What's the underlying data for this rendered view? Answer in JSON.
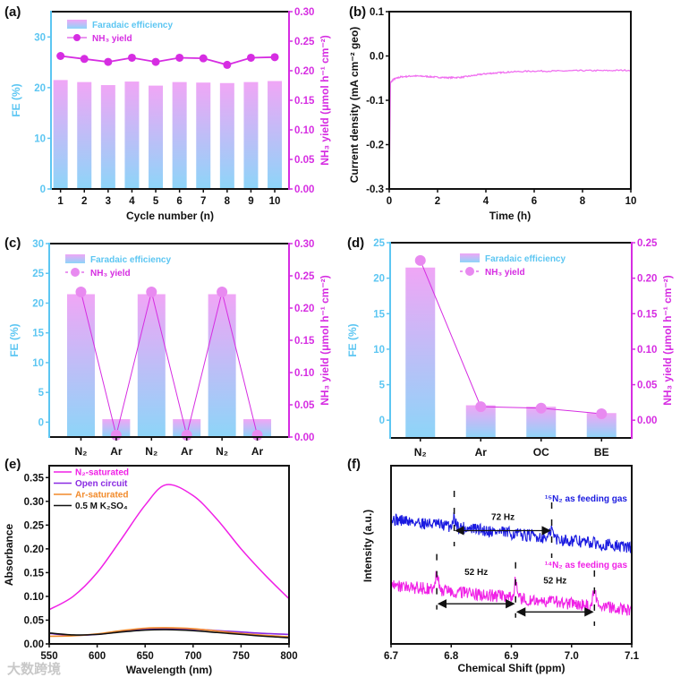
{
  "figure": {
    "panel_labels": [
      "(a)",
      "(b)",
      "(c)",
      "(d)",
      "(e)",
      "(f)"
    ],
    "watermark": "大数跨境"
  },
  "colors": {
    "fe_axis": "#5cc6f2",
    "nh3_axis": "#d62de2",
    "bar_top": "#f0a6f6",
    "bar_bottom": "#8dd5f8",
    "nh3_marker": "#d62de2",
    "nh3_marker_light": "#e88af0",
    "n2_saturated": "#f020e6",
    "open_circuit": "#8a2be2",
    "ar_saturated": "#f28a2a",
    "k2so4": "#111111",
    "n15": "#1a1ae0",
    "n14": "#f020e6",
    "current": "#f070f0"
  },
  "chart_data": [
    {
      "panel": "a",
      "type": "bar",
      "categories": [
        "1",
        "2",
        "3",
        "4",
        "5",
        "6",
        "7",
        "8",
        "9",
        "10"
      ],
      "xlabel": "Cycle number (n)",
      "ylabel": "FE (%)",
      "ylabel_right": "NH₃ yield (μmol h⁻¹ cm⁻²)",
      "ylim": [
        0,
        35
      ],
      "yticks": [
        0,
        10,
        20,
        30
      ],
      "yticklabels": [
        "0",
        "10",
        "20",
        "30"
      ],
      "ylim_right": [
        0,
        0.3
      ],
      "y2ticks": [
        0,
        0.05,
        0.1,
        0.15,
        0.2,
        0.25,
        0.3
      ],
      "y2ticklabels": [
        "0.00",
        "0.05",
        "0.10",
        "0.15",
        "0.20",
        "0.25",
        "0.30"
      ],
      "legend": [
        "Faradaic efficiency",
        "NH₃ yield"
      ],
      "legend_position": "top-left",
      "series": [
        {
          "name": "Faradaic efficiency",
          "axis": "left",
          "kind": "bar",
          "values": [
            21.5,
            21.1,
            20.5,
            21.2,
            20.4,
            21.1,
            21.0,
            20.9,
            21.1,
            21.3
          ]
        },
        {
          "name": "NH₃ yield",
          "axis": "right",
          "kind": "line",
          "values": [
            0.225,
            0.22,
            0.215,
            0.222,
            0.215,
            0.222,
            0.221,
            0.21,
            0.222,
            0.223
          ]
        }
      ]
    },
    {
      "panel": "b",
      "type": "line",
      "xlabel": "Time (h)",
      "ylabel": "Current density (mA cm⁻² geo)",
      "xlim": [
        0,
        10
      ],
      "xticks": [
        0,
        2,
        4,
        6,
        8,
        10
      ],
      "xticklabels": [
        "0",
        "2",
        "4",
        "6",
        "8",
        "10"
      ],
      "ylim": [
        -0.3,
        0.1
      ],
      "yticks": [
        -0.3,
        -0.2,
        -0.1,
        0.0,
        0.1
      ],
      "yticklabels": [
        "-0.3",
        "-0.2",
        "-0.1",
        "0.0",
        "0.1"
      ],
      "series": [
        {
          "name": "current density",
          "x": [
            0,
            0.05,
            0.2,
            0.5,
            1,
            1.5,
            2,
            2.5,
            3,
            3.5,
            4,
            4.5,
            5,
            6,
            7,
            8,
            9,
            10
          ],
          "y": [
            -0.3,
            -0.06,
            -0.052,
            -0.047,
            -0.045,
            -0.046,
            -0.048,
            -0.049,
            -0.048,
            -0.044,
            -0.04,
            -0.038,
            -0.036,
            -0.034,
            -0.034,
            -0.033,
            -0.033,
            -0.032
          ]
        }
      ]
    },
    {
      "panel": "c",
      "type": "bar",
      "categories": [
        "N₂",
        "Ar",
        "N₂",
        "Ar",
        "N₂",
        "Ar"
      ],
      "ylabel": "FE (%)",
      "ylabel_right": "NH₃ yield (μmol h⁻¹ cm⁻²)",
      "ylim": [
        -2.5,
        30
      ],
      "yticks": [
        0,
        5,
        10,
        15,
        20,
        25,
        30
      ],
      "yticklabels": [
        "0",
        "5",
        "10",
        "15",
        "20",
        "25",
        "30"
      ],
      "ylim_right": [
        0,
        0.3
      ],
      "y2ticks": [
        0,
        0.05,
        0.1,
        0.15,
        0.2,
        0.25,
        0.3
      ],
      "y2ticklabels": [
        "0.00",
        "0.05",
        "0.10",
        "0.15",
        "0.20",
        "0.25",
        "0.30"
      ],
      "legend": [
        "Faradaic efficiency",
        "NH₃ yield"
      ],
      "legend_position": "top-left",
      "series": [
        {
          "name": "Faradaic efficiency",
          "axis": "left",
          "kind": "bar",
          "values": [
            21.5,
            0.5,
            21.5,
            0.5,
            21.5,
            0.5
          ]
        },
        {
          "name": "NH₃ yield",
          "axis": "right",
          "kind": "line",
          "values": [
            0.225,
            0.003,
            0.225,
            0.003,
            0.225,
            0.003
          ]
        }
      ]
    },
    {
      "panel": "d",
      "type": "bar",
      "categories": [
        "N₂",
        "Ar",
        "OC",
        "BE"
      ],
      "ylabel": "FE (%)",
      "ylabel_right": "NH₃ yield (μmol h⁻¹ cm⁻²)",
      "ylim": [
        -2.5,
        25
      ],
      "yticks": [
        0,
        5,
        10,
        15,
        20,
        25
      ],
      "yticklabels": [
        "0",
        "5",
        "10",
        "15",
        "20",
        "25"
      ],
      "ylim_right": [
        -0.025,
        0.25
      ],
      "y2ticks": [
        0,
        0.05,
        0.1,
        0.15,
        0.2,
        0.25
      ],
      "y2ticklabels": [
        "0.00",
        "0.05",
        "0.10",
        "0.15",
        "0.20",
        "0.25"
      ],
      "legend": [
        "Faradaic efficiency",
        "NH₃ yield"
      ],
      "legend_position": "top-right",
      "series": [
        {
          "name": "Faradaic efficiency",
          "axis": "left",
          "kind": "bar",
          "values": [
            21.5,
            2.1,
            1.9,
            1.0
          ]
        },
        {
          "name": "NH₃ yield",
          "axis": "right",
          "kind": "line",
          "values": [
            0.225,
            0.019,
            0.017,
            0.009
          ]
        }
      ]
    },
    {
      "panel": "e",
      "type": "line",
      "xlabel": "Wavelength (nm)",
      "ylabel": "Absorbance",
      "xlim": [
        550,
        800
      ],
      "xticks": [
        550,
        600,
        650,
        700,
        750,
        800
      ],
      "xticklabels": [
        "550",
        "600",
        "650",
        "700",
        "750",
        "800"
      ],
      "ylim": [
        0,
        0.375
      ],
      "yticks": [
        0,
        0.05,
        0.1,
        0.15,
        0.2,
        0.25,
        0.3,
        0.35
      ],
      "yticklabels": [
        "0.00",
        "0.05",
        "0.10",
        "0.15",
        "0.20",
        "0.25",
        "0.30",
        "0.35"
      ],
      "legend": [
        "N₂-saturated",
        "Open circuit",
        "Ar-saturated",
        "0.5 M K₂SO₄"
      ],
      "legend_position": "top-left",
      "x": [
        550,
        575,
        600,
        625,
        650,
        672,
        700,
        725,
        750,
        775,
        800
      ],
      "series": [
        {
          "name": "N₂-saturated",
          "y": [
            0.072,
            0.1,
            0.15,
            0.22,
            0.292,
            0.335,
            0.312,
            0.262,
            0.2,
            0.145,
            0.095
          ]
        },
        {
          "name": "Open circuit",
          "y": [
            0.022,
            0.018,
            0.02,
            0.026,
            0.031,
            0.032,
            0.031,
            0.028,
            0.025,
            0.022,
            0.02
          ]
        },
        {
          "name": "Ar-saturated",
          "y": [
            0.016,
            0.017,
            0.021,
            0.028,
            0.033,
            0.034,
            0.032,
            0.027,
            0.022,
            0.018,
            0.015
          ]
        },
        {
          "name": "0.5 M K₂SO₄",
          "y": [
            0.023,
            0.019,
            0.02,
            0.025,
            0.029,
            0.03,
            0.028,
            0.024,
            0.02,
            0.016,
            0.013
          ]
        }
      ]
    },
    {
      "panel": "f",
      "type": "line",
      "xlabel": "Chemical Shift (ppm)",
      "ylabel": "Intensity (a.u.)",
      "xlim": [
        6.7,
        7.1
      ],
      "xticks": [
        6.7,
        6.8,
        6.9,
        7.0,
        7.1
      ],
      "xticklabels": [
        "6.7",
        "6.8",
        "6.9",
        "7.0",
        "7.1"
      ],
      "ylim": [
        0,
        1
      ],
      "series": [
        {
          "name": "¹⁵N₂ as feeding gas",
          "baseline": [
            0.7,
            0.54
          ],
          "peaks": [
            6.805,
            6.967
          ],
          "peak_height": 0.05
        },
        {
          "name": "¹⁴N₂ as feeding gas",
          "baseline": [
            0.33,
            0.19
          ],
          "peaks": [
            6.776,
            6.907,
            7.038
          ],
          "peak_height": 0.09
        }
      ],
      "annotations": [
        {
          "text": "72 Hz",
          "from": 6.805,
          "to": 6.967,
          "series": 0
        },
        {
          "text": "52 Hz",
          "from": 6.776,
          "to": 6.907,
          "series": 1
        },
        {
          "text": "52 Hz",
          "from": 6.907,
          "to": 7.038,
          "series": 1
        }
      ]
    }
  ]
}
